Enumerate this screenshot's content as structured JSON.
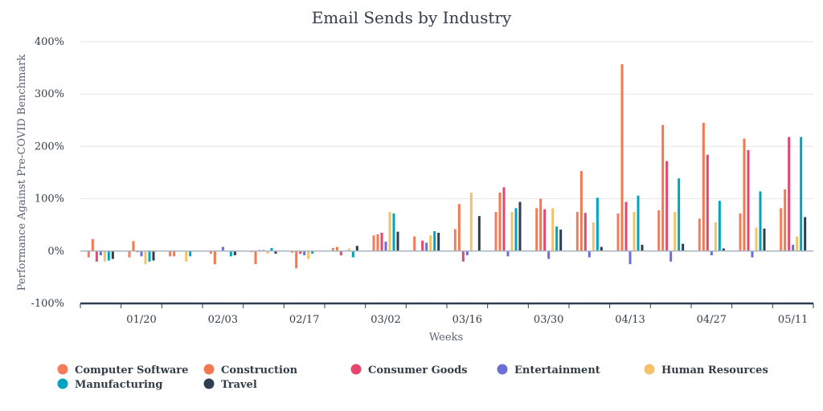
{
  "chart_data": {
    "type": "bar",
    "title": "Email Sends by Industry",
    "xlabel": "Weeks",
    "ylabel": "Performance Against Pre-COVID Benchmark",
    "ylim": [
      -100,
      400
    ],
    "y_ticks": [
      -100,
      0,
      100,
      200,
      300,
      400
    ],
    "y_tick_labels": [
      "-100%",
      "0%",
      "100%",
      "200%",
      "300%",
      "400%"
    ],
    "x_tick_labels": [
      "01/20",
      "02/03",
      "02/17",
      "03/02",
      "03/16",
      "03/30",
      "04/13",
      "04/27",
      "05/11"
    ],
    "x_tick_week_index": [
      1,
      3,
      5,
      7,
      9,
      11,
      13,
      15,
      17
    ],
    "week_count": 18,
    "legend_position": "bottom",
    "series": [
      {
        "name": "Computer Software",
        "color": "#f47c5c",
        "values": [
          -12,
          -12,
          -10,
          -5,
          -2,
          -3,
          6,
          30,
          28,
          42,
          75,
          82,
          75,
          72,
          78,
          62,
          72,
          82
        ]
      },
      {
        "name": "Construction",
        "color": "#f2784f",
        "values": [
          23,
          19,
          -10,
          -25,
          -25,
          -33,
          8,
          32,
          0,
          90,
          112,
          100,
          153,
          357,
          241,
          245,
          215,
          118
        ]
      },
      {
        "name": "Consumer Goods",
        "color": "#e8456e",
        "values": [
          -20,
          -2,
          0,
          0,
          2,
          -5,
          -8,
          35,
          20,
          -20,
          122,
          80,
          73,
          94,
          172,
          184,
          193,
          218
        ]
      },
      {
        "name": "Entertainment",
        "color": "#6b6fd4",
        "values": [
          -8,
          -10,
          0,
          8,
          2,
          -8,
          0,
          18,
          16,
          -8,
          -10,
          -15,
          -12,
          -25,
          -20,
          -8,
          -12,
          12
        ]
      },
      {
        "name": "Human Resources",
        "color": "#f5c26b",
        "values": [
          -20,
          -25,
          -20,
          0,
          -5,
          -15,
          5,
          75,
          30,
          112,
          75,
          82,
          55,
          75,
          75,
          55,
          45,
          28
        ]
      },
      {
        "name": "Manufacturing",
        "color": "#00a4bd",
        "values": [
          -18,
          -20,
          -10,
          -10,
          6,
          -5,
          -12,
          72,
          38,
          0,
          82,
          47,
          102,
          106,
          139,
          96,
          114,
          218
        ]
      },
      {
        "name": "Travel",
        "color": "#2d3e50",
        "values": [
          -15,
          -18,
          0,
          -8,
          -5,
          0,
          10,
          37,
          35,
          67,
          94,
          41,
          8,
          12,
          14,
          5,
          43,
          65
        ]
      }
    ]
  }
}
